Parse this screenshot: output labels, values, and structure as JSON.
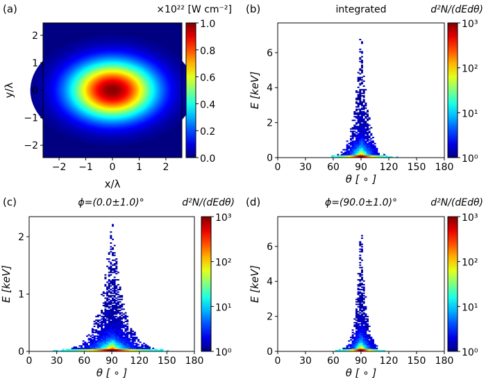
{
  "figure": {
    "panels": [
      {
        "tag": "(a)",
        "title_right": "×10²² [W cm⁻²]"
      },
      {
        "tag": "(b)",
        "title_center": "integrated",
        "title_right": "d²N/(dEdθ)"
      },
      {
        "tag": "(c)",
        "title_center": "ϕ=(0.0±1.0)°",
        "title_right": "d²N/(dEdθ)"
      },
      {
        "tag": "(d)",
        "title_center": "ϕ=(90.0±1.0)°",
        "title_right": "d²N/(dEdθ)"
      }
    ]
  },
  "chart_data": [
    {
      "type": "heatmap",
      "panel": "(a)",
      "title": "×10²² [W cm⁻²]",
      "xlabel": "x/λ",
      "ylabel": "y/λ",
      "xlim": [
        -2.6,
        2.6
      ],
      "ylim": [
        -2.45,
        2.45
      ],
      "xticks": [
        -2,
        -1,
        0,
        1,
        2
      ],
      "yticks": [
        -2,
        -1,
        0,
        1,
        2
      ],
      "profile": {
        "shape": "gaussian",
        "peak": 1.0,
        "center": [
          0,
          0
        ],
        "sigma_x": 1.1,
        "sigma_y": 0.72
      },
      "colorbar": {
        "min": 0.0,
        "max": 1.0,
        "ticks": [
          "0.0",
          "0.2",
          "0.4",
          "0.6",
          "0.8",
          "1.0"
        ],
        "colormap": "jet"
      }
    },
    {
      "type": "heatmap",
      "panel": "(b)",
      "title": "integrated",
      "xlabel": "θ [ ∘ ]",
      "ylabel": "E [keV]",
      "xlim": [
        0,
        180
      ],
      "ylim": [
        0,
        7.7
      ],
      "xticks": [
        0,
        30,
        60,
        90,
        120,
        150,
        180
      ],
      "yticks": [
        0,
        2,
        4,
        6
      ],
      "distribution": {
        "center_deg": 90,
        "e_max_keV": 7.6,
        "core_width_deg": 8,
        "base_halfwidth_deg": 40
      },
      "colorbar": {
        "label": "d²N/(dEdθ)",
        "scale": "log",
        "ticks": [
          "10⁰",
          "10¹",
          "10²",
          "10³"
        ],
        "colormap": "jet"
      }
    },
    {
      "type": "heatmap",
      "panel": "(c)",
      "title": "ϕ=(0.0±1.0)°",
      "xlabel": "θ [ ∘ ]",
      "ylabel": "E [keV]",
      "xlim": [
        0,
        180
      ],
      "ylim": [
        0,
        2.35
      ],
      "xticks": [
        0,
        30,
        60,
        90,
        120,
        150,
        180
      ],
      "yticks": [
        0,
        1,
        2
      ],
      "distribution": {
        "center_deg": 90,
        "e_max_keV": 2.3,
        "core_width_deg": 14,
        "base_halfwidth_deg": 70
      },
      "colorbar": {
        "label": "d²N/(dEdθ)",
        "scale": "log",
        "ticks": [
          "10⁰",
          "10¹",
          "10²",
          "10³"
        ],
        "colormap": "jet"
      }
    },
    {
      "type": "heatmap",
      "panel": "(d)",
      "title": "ϕ=(90.0±1.0)°",
      "xlabel": "θ [ ∘ ]",
      "ylabel": "E [keV]",
      "xlim": [
        0,
        180
      ],
      "ylim": [
        0,
        7.7
      ],
      "xticks": [
        0,
        30,
        60,
        90,
        120,
        150,
        180
      ],
      "yticks": [
        0,
        2,
        4,
        6
      ],
      "distribution": {
        "center_deg": 90,
        "e_max_keV": 7.6,
        "core_width_deg": 6,
        "base_halfwidth_deg": 30
      },
      "colorbar": {
        "label": "d²N/(dEdθ)",
        "scale": "log",
        "ticks": [
          "10⁰",
          "10¹",
          "10²",
          "10³"
        ],
        "colormap": "jet"
      }
    }
  ]
}
